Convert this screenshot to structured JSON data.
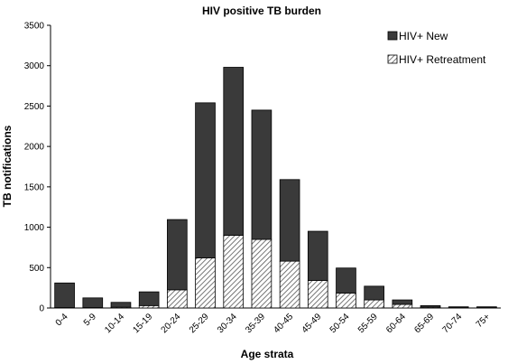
{
  "chart_data": {
    "type": "bar",
    "stacked": true,
    "title": "HIV positive TB burden",
    "xlabel": "Age strata",
    "ylabel": "TB notifications",
    "ylim": [
      0,
      3500
    ],
    "yticks": [
      0,
      500,
      1000,
      1500,
      2000,
      2500,
      3000,
      3500
    ],
    "grid": false,
    "legend_position": "top-right",
    "categories": [
      "0-4",
      "5-9",
      "10-14",
      "15-19",
      "20-24",
      "25-29",
      "30-34",
      "35-39",
      "40-45",
      "45-49",
      "50-54",
      "55-59",
      "60-64",
      "65-69",
      "70-74",
      "75+"
    ],
    "series": [
      {
        "name": "HIV+ Retreatment",
        "pattern": "hatched",
        "values": [
          5,
          5,
          10,
          30,
          225,
          620,
          900,
          850,
          580,
          340,
          185,
          100,
          45,
          10,
          5,
          5
        ]
      },
      {
        "name": "HIV+ New",
        "pattern": "solid",
        "values": [
          305,
          120,
          60,
          170,
          870,
          1920,
          2080,
          1600,
          1010,
          610,
          310,
          170,
          55,
          20,
          10,
          10
        ]
      }
    ],
    "legend_order": [
      "HIV+ New",
      "HIV+ Retreatment"
    ],
    "colors": {
      "new": "#3a3a3a",
      "bar_outline": "#000000",
      "hatch": "#555555"
    }
  }
}
